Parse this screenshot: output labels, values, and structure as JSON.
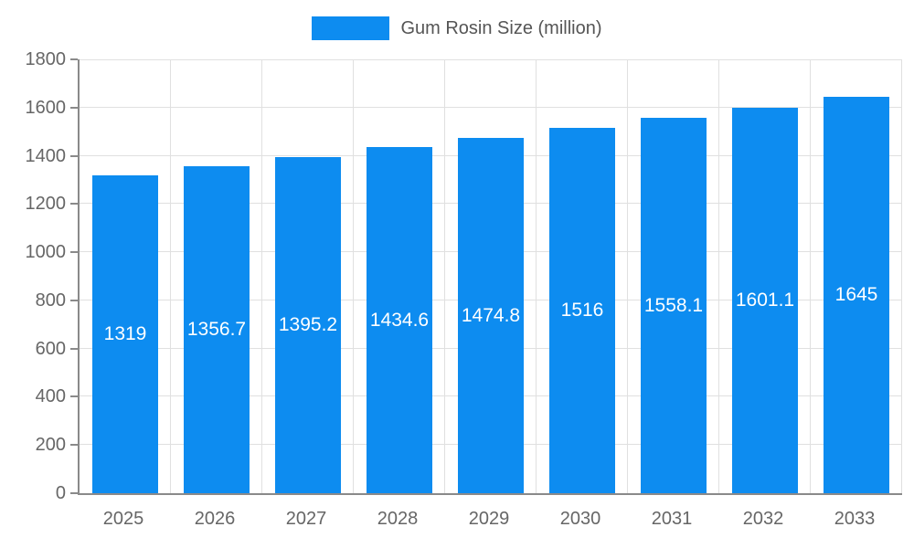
{
  "chart_data": {
    "type": "bar",
    "title": "",
    "legend": "Gum Rosin Size (million)",
    "categories": [
      "2025",
      "2026",
      "2027",
      "2028",
      "2029",
      "2030",
      "2031",
      "2032",
      "2033"
    ],
    "values": [
      1319,
      1356.7,
      1395.2,
      1434.6,
      1474.8,
      1516,
      1558.1,
      1601.1,
      1645
    ],
    "value_labels": [
      "1319",
      "1356.7",
      "1395.2",
      "1434.6",
      "1474.8",
      "1516",
      "1558.1",
      "1601.1",
      "1645"
    ],
    "xlabel": "",
    "ylabel": "",
    "ylim": [
      0,
      1800
    ],
    "yticks": [
      0,
      200,
      400,
      600,
      800,
      1000,
      1200,
      1400,
      1600,
      1800
    ],
    "grid": true,
    "legend_position": "top",
    "colors": {
      "bar": "#0d8cf0",
      "axis": "#8a8a8a",
      "grid": "#e0e0e0",
      "tick_text": "#666666",
      "legend_text": "#555555",
      "bar_label_text": "#ffffff",
      "background": "#ffffff"
    }
  }
}
